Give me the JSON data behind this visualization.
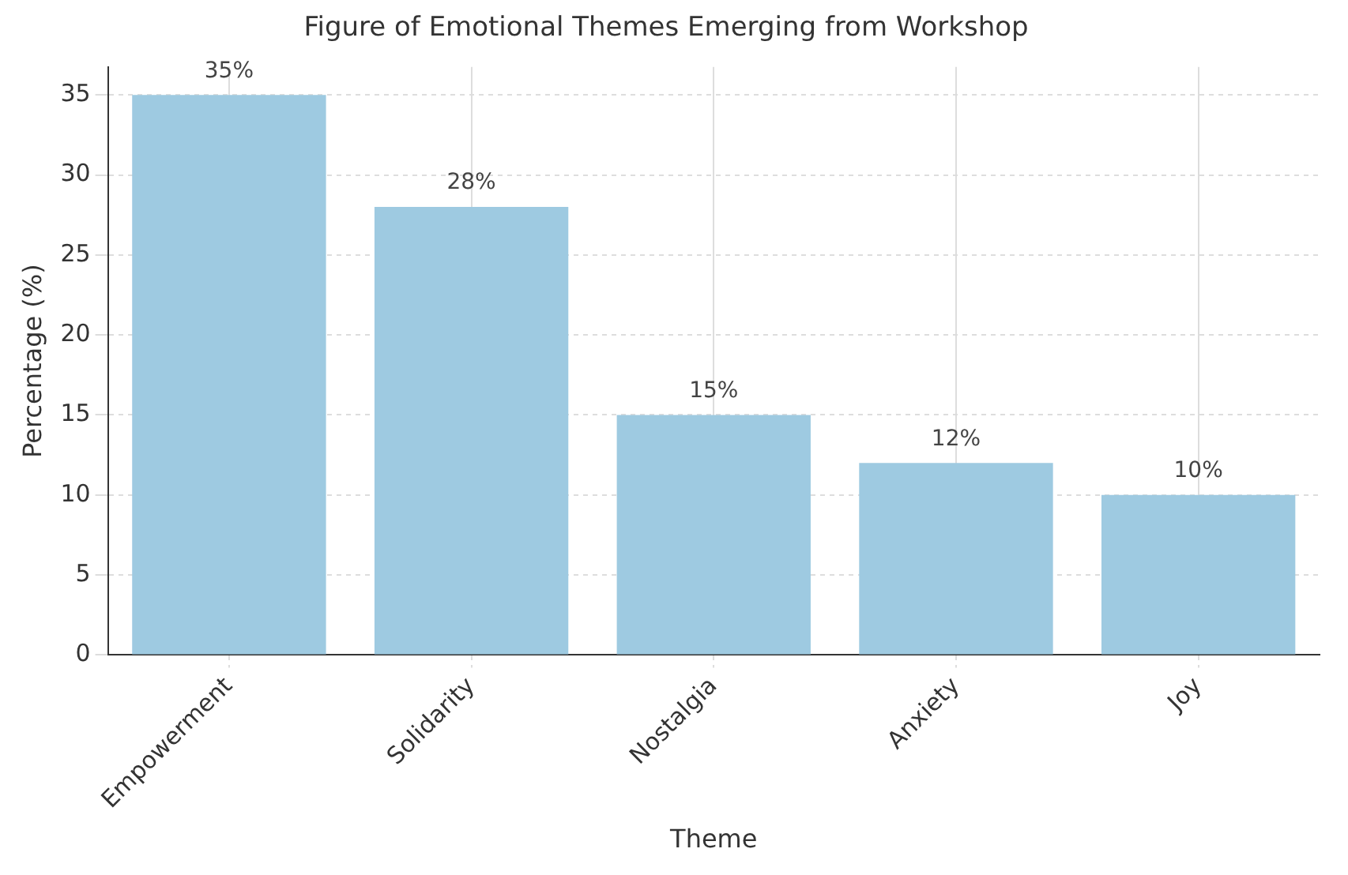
{
  "chart_data": {
    "type": "bar",
    "title": "Figure of Emotional Themes Emerging from Workshop",
    "xlabel": "Theme",
    "ylabel": "Percentage (%)",
    "categories": [
      "Empowerment",
      "Solidarity",
      "Nostalgia",
      "Anxiety",
      "Joy"
    ],
    "values": [
      35,
      28,
      15,
      12,
      10
    ],
    "color": "#9ecae1",
    "value_labels": [
      "35%",
      "28%",
      "15%",
      "12%",
      "10%"
    ],
    "ylim": [
      0,
      36.75
    ],
    "yticks": [
      0,
      5,
      10,
      15,
      20,
      25,
      30,
      35
    ],
    "grid": true,
    "legend": false
  }
}
